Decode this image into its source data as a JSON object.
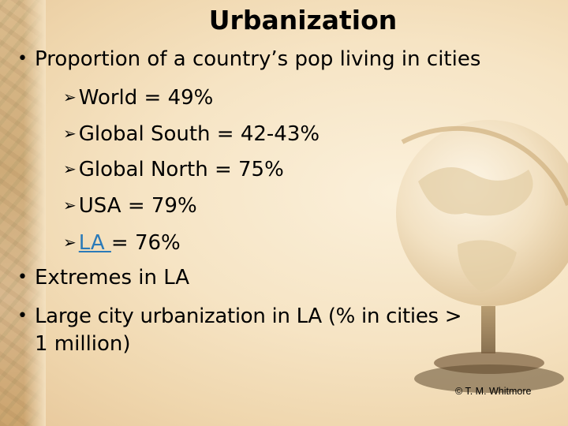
{
  "slide": {
    "title": "Urbanization",
    "bullet1": "Proportion of a country’s pop living in cities",
    "sub_items": [
      {
        "text": "World = 49%"
      },
      {
        "text": "Global South = 42-43%"
      },
      {
        "text": "Global North = 75%"
      },
      {
        "text": "USA = 79%"
      },
      {
        "link": "LA ",
        "rest": "= 76%"
      }
    ],
    "bullet2": "Extremes in LA",
    "bullet3_line1": "Large city urbanization in LA (% in cities >",
    "bullet3_line2": "1 million)",
    "credit": "© T. M. Whitmore"
  },
  "colors": {
    "link": "#2b7ab8",
    "background": "#f6e4c4"
  },
  "icons": {
    "bullet": "bullet-dot",
    "sub_bullet": "arrow-bullet-icon",
    "decoration": "globe-icon"
  }
}
